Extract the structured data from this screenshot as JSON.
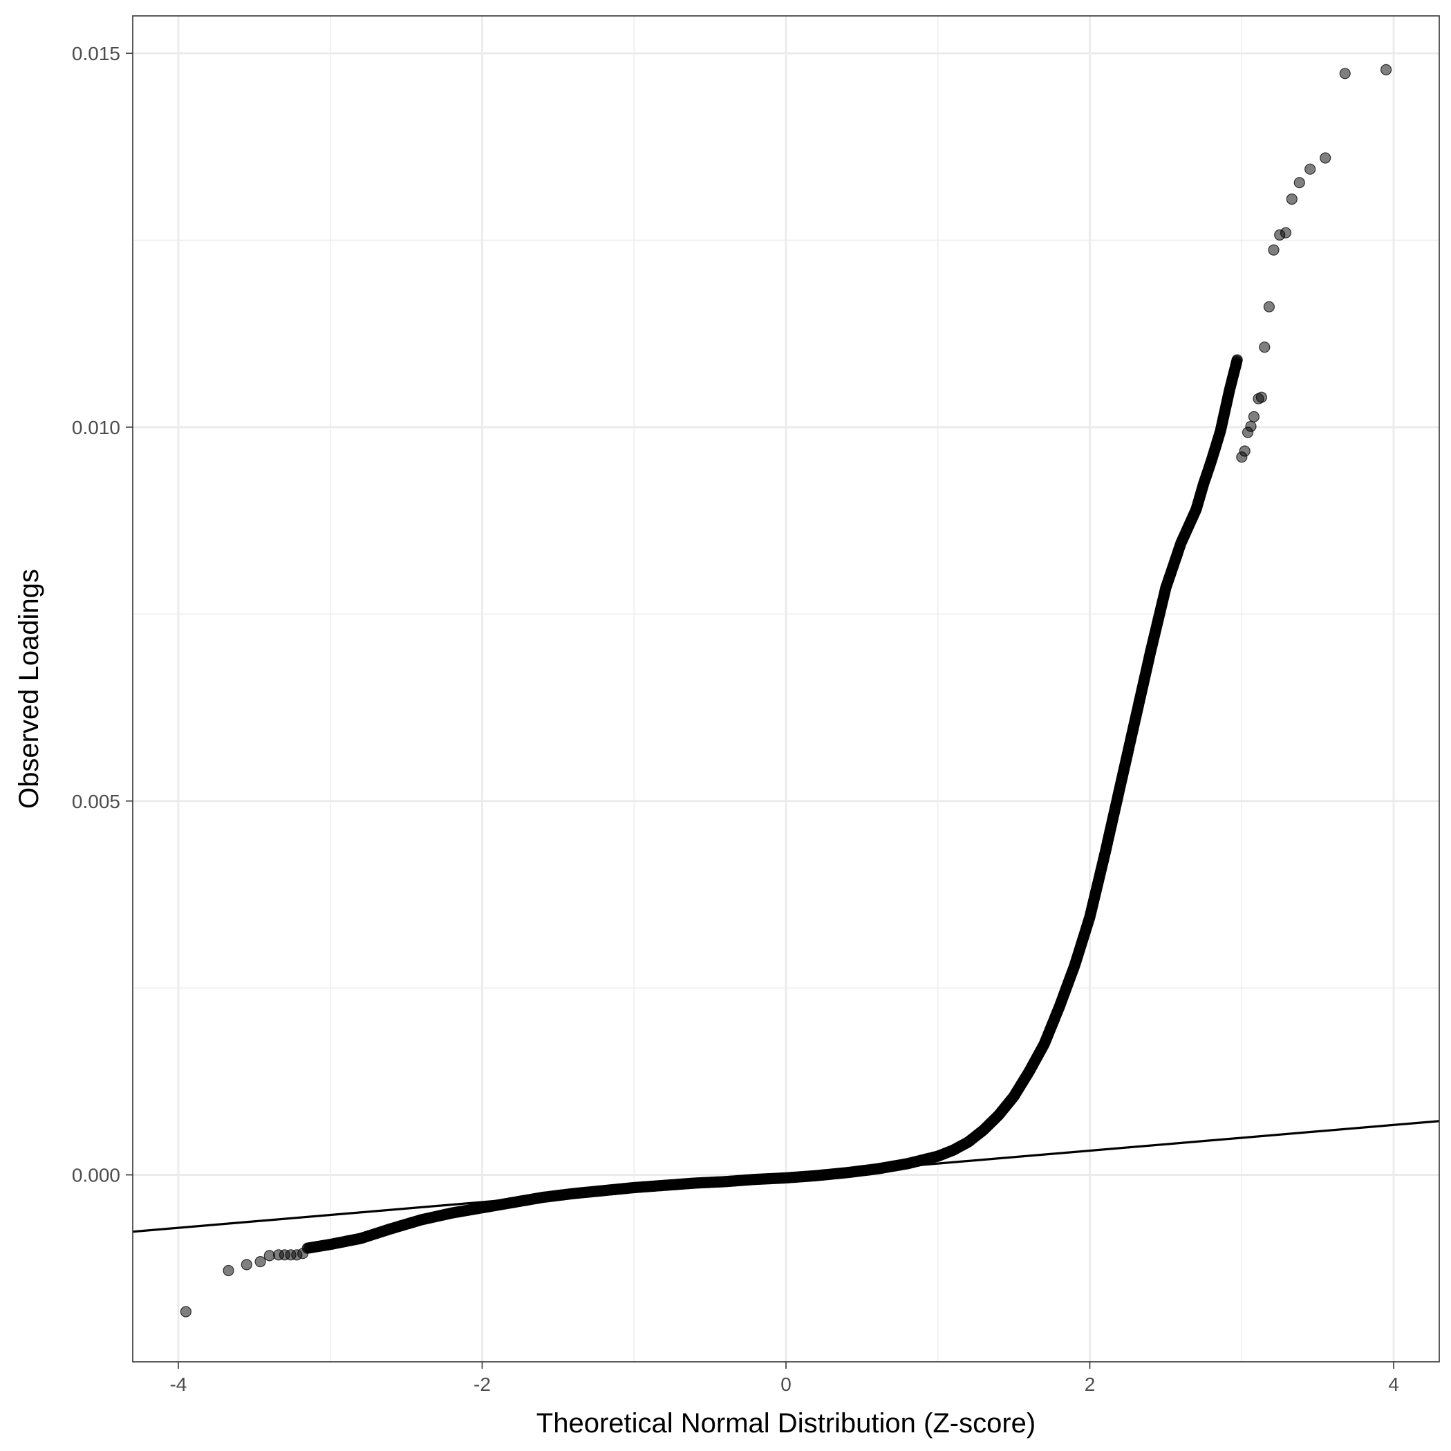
{
  "chart_data": {
    "type": "scatter",
    "title": "",
    "xlabel": "Theoretical Normal Distribution (Z-score)",
    "ylabel": "Observed Loadings",
    "xlim": [
      -4.3,
      4.3
    ],
    "ylim": [
      -0.0025,
      0.0155
    ],
    "x_ticks": [
      -4,
      -2,
      0,
      2,
      4
    ],
    "x_tick_labels": [
      "-4",
      "-2",
      "0",
      "2",
      "4"
    ],
    "y_ticks": [
      0,
      0.005,
      0.01,
      0.015
    ],
    "y_tick_labels": [
      "0.000",
      "0.005",
      "0.010",
      "0.015"
    ],
    "grid": true,
    "reference_line": {
      "intercept": -2e-05,
      "slope": 0.000172
    },
    "point_color": "#000000",
    "point_opacity": 0.5,
    "line_color": "#000000",
    "outlier_points": [
      [
        -3.95,
        -0.00183
      ],
      [
        -3.67,
        -0.00128
      ],
      [
        -3.55,
        -0.0012
      ],
      [
        -3.46,
        -0.00116
      ],
      [
        -3.4,
        -0.00108
      ],
      [
        -3.34,
        -0.00107
      ],
      [
        -3.3,
        -0.00107
      ],
      [
        -3.26,
        -0.00107
      ],
      [
        -3.22,
        -0.00107
      ],
      [
        -3.18,
        -0.00105
      ],
      [
        3.0,
        0.0096
      ],
      [
        3.02,
        0.00968
      ],
      [
        3.04,
        0.00993
      ],
      [
        3.06,
        0.01001
      ],
      [
        3.08,
        0.01014
      ],
      [
        3.11,
        0.01038
      ],
      [
        3.13,
        0.0104
      ],
      [
        3.15,
        0.01107
      ],
      [
        3.18,
        0.01161
      ],
      [
        3.21,
        0.01237
      ],
      [
        3.25,
        0.01257
      ],
      [
        3.29,
        0.0126
      ],
      [
        3.33,
        0.01305
      ],
      [
        3.38,
        0.01327
      ],
      [
        3.45,
        0.01345
      ],
      [
        3.55,
        0.0136
      ],
      [
        3.68,
        0.01473
      ],
      [
        3.95,
        0.01478
      ]
    ],
    "quantile_curve": [
      [
        -3.15,
        -0.00098
      ],
      [
        -3.0,
        -0.00093
      ],
      [
        -2.8,
        -0.00085
      ],
      [
        -2.6,
        -0.00072
      ],
      [
        -2.4,
        -0.0006
      ],
      [
        -2.2,
        -0.00051
      ],
      [
        -2.0,
        -0.00044
      ],
      [
        -1.8,
        -0.00037
      ],
      [
        -1.6,
        -0.0003
      ],
      [
        -1.4,
        -0.00025
      ],
      [
        -1.2,
        -0.00021
      ],
      [
        -1.0,
        -0.00017
      ],
      [
        -0.8,
        -0.00014
      ],
      [
        -0.6,
        -0.00011
      ],
      [
        -0.4,
        -9e-05
      ],
      [
        -0.2,
        -6e-05
      ],
      [
        0.0,
        -4e-05
      ],
      [
        0.2,
        -1e-05
      ],
      [
        0.4,
        3e-05
      ],
      [
        0.6,
        8e-05
      ],
      [
        0.8,
        0.00015
      ],
      [
        1.0,
        0.00025
      ],
      [
        1.1,
        0.00033
      ],
      [
        1.2,
        0.00044
      ],
      [
        1.3,
        0.0006
      ],
      [
        1.4,
        0.0008
      ],
      [
        1.5,
        0.00105
      ],
      [
        1.6,
        0.00138
      ],
      [
        1.7,
        0.00175
      ],
      [
        1.8,
        0.00225
      ],
      [
        1.9,
        0.0028
      ],
      [
        2.0,
        0.00345
      ],
      [
        2.1,
        0.0043
      ],
      [
        2.2,
        0.0052
      ],
      [
        2.3,
        0.0061
      ],
      [
        2.4,
        0.007
      ],
      [
        2.5,
        0.00785
      ],
      [
        2.6,
        0.00845
      ],
      [
        2.7,
        0.0089
      ],
      [
        2.75,
        0.00925
      ],
      [
        2.8,
        0.00955
      ],
      [
        2.86,
        0.00995
      ],
      [
        2.92,
        0.0105
      ],
      [
        2.97,
        0.0109
      ]
    ]
  }
}
